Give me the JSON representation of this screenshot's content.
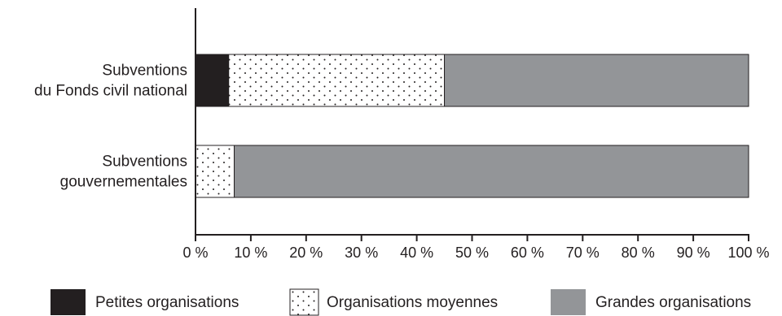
{
  "chart_data": {
    "type": "bar",
    "orientation": "horizontal",
    "stacked": true,
    "categories": [
      [
        "Subventions",
        "du Fonds civil national"
      ],
      [
        "Subventions",
        "gouvernementales"
      ]
    ],
    "series": [
      {
        "name": "Petites organisations",
        "values": [
          6,
          0
        ],
        "color": "#231f20",
        "pattern": "solid"
      },
      {
        "name": "Organisations moyennes",
        "values": [
          39,
          7
        ],
        "color": "#ffffff",
        "pattern": "dots"
      },
      {
        "name": "Grandes organisations",
        "values": [
          55,
          93
        ],
        "color": "#939598",
        "pattern": "solid"
      }
    ],
    "xlim": [
      0,
      100
    ],
    "xticks": [
      "0 %",
      "10 %",
      "20 %",
      "30 %",
      "40 %",
      "50 %",
      "60 %",
      "70 %",
      "80 %",
      "90 %",
      "100 %"
    ],
    "grid": false,
    "legend_position": "bottom"
  }
}
